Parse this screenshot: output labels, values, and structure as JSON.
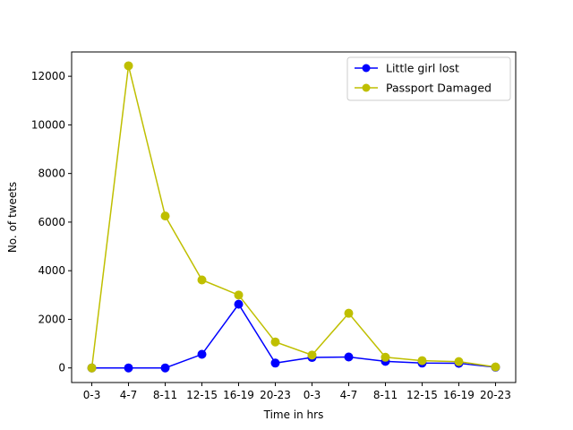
{
  "chart_data": {
    "type": "line",
    "categories": [
      "0-3",
      "4-7",
      "8-11",
      "12-15",
      "16-19",
      "20-23",
      "0-3",
      "4-7",
      "8-11",
      "12-15",
      "16-19",
      "20-23"
    ],
    "xlabel": "Time in hrs",
    "ylabel": "No. of tweets",
    "ylim": [
      -600,
      13000
    ],
    "yticks": [
      0,
      2000,
      4000,
      6000,
      8000,
      10000,
      12000
    ],
    "grid": false,
    "legend_position": "top-right",
    "series": [
      {
        "name": "Little girl lost",
        "color": "#0000ff",
        "values": [
          0,
          0,
          0,
          560,
          2620,
          200,
          430,
          450,
          270,
          200,
          190,
          30
        ]
      },
      {
        "name": "Passport Damaged",
        "color": "#bfbf00",
        "values": [
          0,
          12430,
          6250,
          3620,
          3000,
          1070,
          530,
          2250,
          440,
          300,
          260,
          40
        ]
      }
    ]
  }
}
